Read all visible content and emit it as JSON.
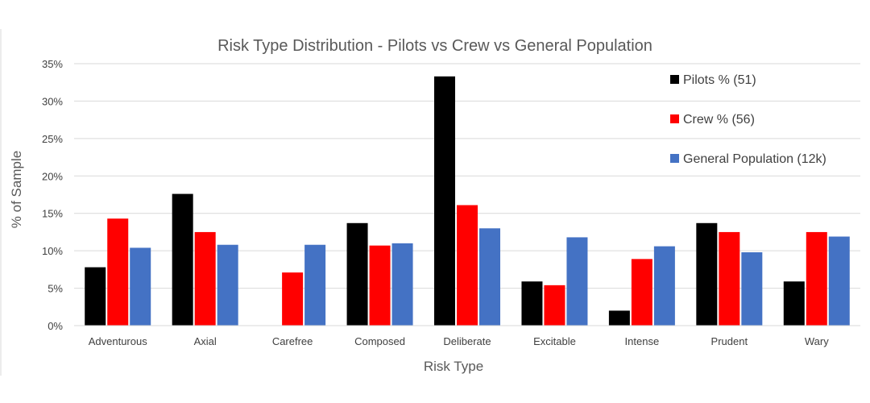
{
  "chart_data": {
    "type": "bar",
    "title": "Risk Type Distribution - Pilots vs Crew vs General Population",
    "xlabel": "Risk Type",
    "ylabel": "% of Sample",
    "ylim": [
      0,
      35
    ],
    "yticks": [
      "0%",
      "5%",
      "10%",
      "15%",
      "20%",
      "25%",
      "30%",
      "35%"
    ],
    "grid": true,
    "legend_position": "top-right",
    "categories": [
      "Adventurous",
      "Axial",
      "Carefree",
      "Composed",
      "Deliberate",
      "Excitable",
      "Intense",
      "Prudent",
      "Wary"
    ],
    "series": [
      {
        "name": "Pilots % (51)",
        "color": "#000000",
        "values": [
          7.8,
          17.6,
          0,
          13.7,
          33.3,
          5.9,
          2.0,
          13.7,
          5.9
        ]
      },
      {
        "name": "Crew % (56)",
        "color": "#ff0000",
        "values": [
          14.3,
          12.5,
          7.1,
          10.7,
          16.1,
          5.4,
          8.9,
          12.5,
          12.5
        ]
      },
      {
        "name": "General Population (12k)",
        "color": "#4472c4",
        "values": [
          10.4,
          10.8,
          10.8,
          11.0,
          13.0,
          11.8,
          10.6,
          9.8,
          11.9
        ]
      }
    ]
  }
}
